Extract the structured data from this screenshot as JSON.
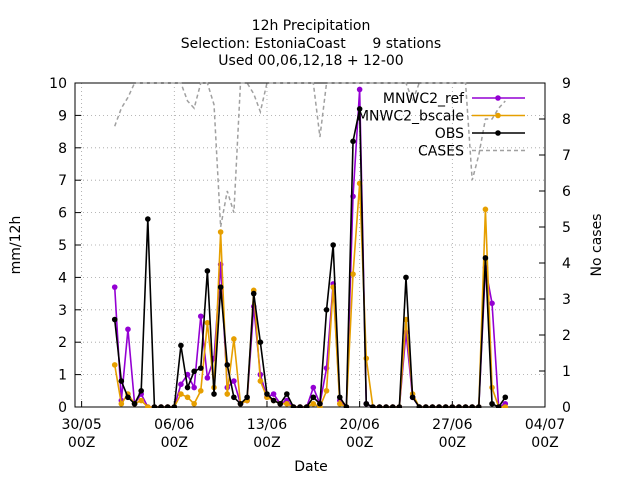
{
  "chart_data": {
    "type": "line",
    "title": [
      "12h Precipitation",
      "Selection: EstoniaCoast      9 stations",
      "Used 00,06,12,18 + 12-00"
    ],
    "xlabel": "Date",
    "ylabel": "mm/12h",
    "y2label": "No cases",
    "x": [
      "01/06 12Z",
      "02/06 00Z",
      "02/06 12Z",
      "03/06 00Z",
      "03/06 12Z",
      "04/06 00Z",
      "04/06 12Z",
      "05/06 00Z",
      "05/06 12Z",
      "06/06 00Z",
      "06/06 12Z",
      "07/06 00Z",
      "07/06 12Z",
      "08/06 00Z",
      "08/06 12Z",
      "09/06 00Z",
      "09/06 12Z",
      "10/06 00Z",
      "10/06 12Z",
      "11/06 00Z",
      "11/06 12Z",
      "12/06 00Z",
      "12/06 12Z",
      "13/06 00Z",
      "13/06 12Z",
      "14/06 00Z",
      "14/06 12Z",
      "15/06 00Z",
      "15/06 12Z",
      "16/06 00Z",
      "16/06 12Z",
      "17/06 00Z",
      "17/06 12Z",
      "18/06 00Z",
      "18/06 12Z",
      "19/06 00Z",
      "19/06 12Z",
      "20/06 00Z",
      "20/06 12Z",
      "21/06 00Z",
      "21/06 12Z",
      "22/06 00Z",
      "22/06 12Z",
      "23/06 00Z",
      "23/06 12Z",
      "24/06 00Z",
      "24/06 12Z",
      "25/06 00Z",
      "25/06 12Z",
      "26/06 00Z",
      "26/06 12Z",
      "27/06 00Z",
      "27/06 12Z",
      "28/06 00Z",
      "28/06 12Z",
      "29/06 00Z",
      "29/06 12Z",
      "30/06 00Z",
      "30/06 12Z",
      "01/07 00Z"
    ],
    "series": [
      {
        "name": "MNWC2_ref",
        "color": "#9400d3",
        "style": "linespoints",
        "values": [
          3.7,
          0.2,
          2.4,
          0.1,
          0.4,
          0,
          0,
          0,
          0,
          0,
          0.7,
          1.0,
          0.6,
          2.8,
          0.9,
          1.5,
          4.4,
          0.6,
          0.8,
          0.1,
          0.2,
          3.1,
          1.0,
          0.3,
          0.4,
          0.1,
          0.2,
          0,
          0,
          0,
          0.6,
          0.1,
          1.2,
          3.8,
          0.2,
          0,
          6.5,
          9.8,
          0.1,
          0,
          0,
          0,
          0,
          0,
          2.3,
          0.3,
          0,
          0,
          0,
          0,
          0,
          0,
          0,
          0,
          0,
          0,
          4.3,
          3.2,
          0,
          0.1
        ]
      },
      {
        "name": "MNWC2_bscale",
        "color": "#e69f00",
        "style": "linespoints",
        "values": [
          1.3,
          0.1,
          0.4,
          0.1,
          0.2,
          0,
          0,
          0,
          0,
          0,
          0.4,
          0.3,
          0.1,
          0.5,
          2.6,
          0.6,
          5.4,
          0.4,
          2.1,
          0.1,
          0.2,
          3.6,
          0.8,
          0.3,
          0.2,
          0.1,
          0.1,
          0,
          0,
          0,
          0.1,
          0,
          0.5,
          3.7,
          0.1,
          0,
          4.1,
          6.9,
          1.5,
          0,
          0,
          0,
          0,
          0,
          2.7,
          0.4,
          0,
          0,
          0,
          0,
          0,
          0,
          0,
          0,
          0,
          0,
          6.1,
          0.6,
          0,
          0
        ]
      },
      {
        "name": "OBS",
        "color": "#000000",
        "style": "linespoints",
        "values": [
          2.7,
          0.8,
          0.3,
          0.1,
          0.5,
          5.8,
          0,
          0,
          0,
          0,
          1.9,
          0.6,
          1.1,
          1.2,
          4.2,
          0.4,
          3.7,
          1.3,
          0.3,
          0.1,
          0.3,
          3.5,
          2.0,
          0.4,
          0.2,
          0.1,
          0.4,
          0,
          0,
          0,
          0.3,
          0.1,
          3.0,
          5.0,
          0.3,
          0,
          8.2,
          9.2,
          0.1,
          0,
          0,
          0,
          0,
          0,
          4.0,
          0.3,
          0,
          0,
          0,
          0,
          0,
          0,
          0,
          0,
          0,
          0,
          4.6,
          0.1,
          0,
          0.3
        ]
      },
      {
        "name": "CASES",
        "color": "#a0a0a0",
        "style": "dashed",
        "axis": "y2",
        "values": [
          7.8,
          8.3,
          8.6,
          9,
          9,
          9,
          9,
          9,
          9,
          9,
          9,
          8.5,
          8.3,
          9,
          9,
          8.4,
          5.0,
          6.0,
          5.4,
          9,
          9,
          8.7,
          8.2,
          9,
          9,
          9,
          9,
          9,
          9,
          9,
          9,
          7.5,
          9,
          9,
          9,
          9,
          9,
          9,
          9,
          9,
          9,
          9,
          9,
          9,
          9,
          8.5,
          9,
          9,
          9,
          9,
          9,
          9,
          9,
          9,
          6.3,
          7.0,
          8.0,
          8.0,
          8.3,
          8.5
        ]
      }
    ],
    "xlim": [
      "29/05 12Z",
      "04/07 00Z"
    ],
    "xticks": [
      {
        "value": "30/05 00Z",
        "label": [
          "30/05",
          "00Z"
        ]
      },
      {
        "value": "06/06 00Z",
        "label": [
          "06/06",
          "00Z"
        ]
      },
      {
        "value": "13/06 00Z",
        "label": [
          "13/06",
          "00Z"
        ]
      },
      {
        "value": "20/06 00Z",
        "label": [
          "20/06",
          "00Z"
        ]
      },
      {
        "value": "27/06 00Z",
        "label": [
          "27/06",
          "00Z"
        ]
      },
      {
        "value": "04/07 00Z",
        "label": [
          "04/07",
          "00Z"
        ]
      }
    ],
    "ylim": [
      0,
      10
    ],
    "yticks": [
      0,
      1,
      2,
      3,
      4,
      5,
      6,
      7,
      8,
      9,
      10
    ],
    "y2lim": [
      0,
      9
    ],
    "y2ticks": [
      0,
      1,
      2,
      3,
      4,
      5,
      6,
      7,
      8,
      9
    ],
    "grid": true,
    "legend": "top-right"
  }
}
